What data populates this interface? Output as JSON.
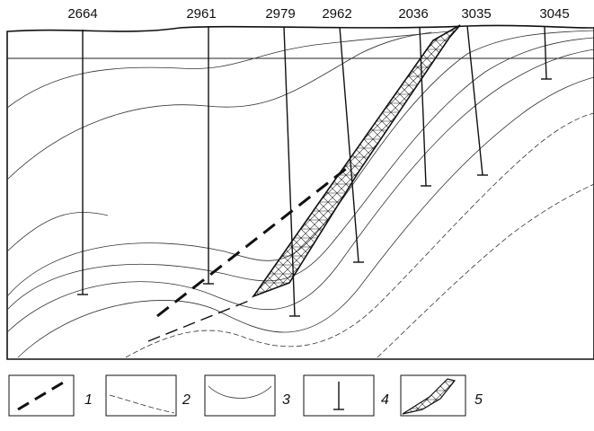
{
  "wells": [
    "2664",
    "2961",
    "2979",
    "2962",
    "2036",
    "3035",
    "3045"
  ],
  "legend": [
    "1",
    "2",
    "3",
    "4",
    "5"
  ]
}
